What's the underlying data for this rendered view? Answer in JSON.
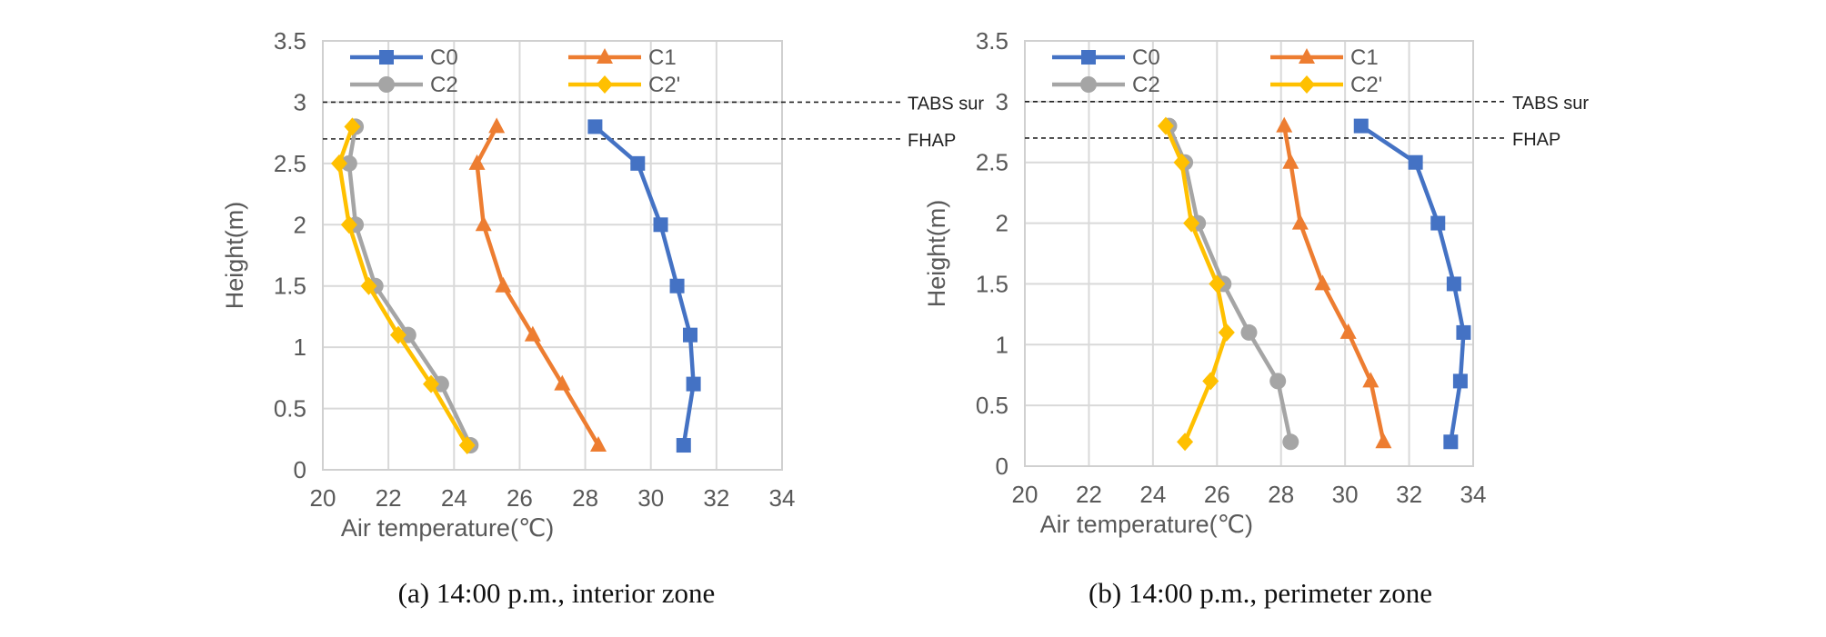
{
  "chart_data": [
    {
      "type": "line",
      "caption": "(a) 14:00 p.m., interior zone",
      "xlabel": "Air temperature(℃)",
      "ylabel": "Height(m)",
      "xlim": [
        20,
        34
      ],
      "ylim": [
        0,
        3.5
      ],
      "xticks": [
        "20",
        "22",
        "24",
        "26",
        "28",
        "30",
        "32",
        "34"
      ],
      "yticks": [
        "0",
        "0.5",
        "1",
        "1.5",
        "2",
        "2.5",
        "3",
        "3.5"
      ],
      "grid": true,
      "legend": "top-inside",
      "reference_lines": [
        {
          "label": "TABS sur",
          "y": 3.0
        },
        {
          "label": "FHAP",
          "y": 2.7
        }
      ],
      "series": [
        {
          "name": "C0",
          "color": "#4472C4",
          "marker": "square",
          "points": [
            [
              28.3,
              2.8
            ],
            [
              29.6,
              2.5
            ],
            [
              30.3,
              2.0
            ],
            [
              30.8,
              1.5
            ],
            [
              31.2,
              1.1
            ],
            [
              31.3,
              0.7
            ],
            [
              31.0,
              0.2
            ]
          ]
        },
        {
          "name": "C1",
          "color": "#ED7D31",
          "marker": "triangle",
          "points": [
            [
              25.3,
              2.8
            ],
            [
              24.7,
              2.5
            ],
            [
              24.9,
              2.0
            ],
            [
              25.5,
              1.5
            ],
            [
              26.4,
              1.1
            ],
            [
              27.3,
              0.7
            ],
            [
              28.4,
              0.2
            ]
          ]
        },
        {
          "name": "C2",
          "color": "#A5A5A5",
          "marker": "circle",
          "points": [
            [
              21.0,
              2.8
            ],
            [
              20.8,
              2.5
            ],
            [
              21.0,
              2.0
            ],
            [
              21.6,
              1.5
            ],
            [
              22.6,
              1.1
            ],
            [
              23.6,
              0.7
            ],
            [
              24.5,
              0.2
            ]
          ]
        },
        {
          "name": "C2'",
          "color": "#FFC000",
          "marker": "diamond",
          "points": [
            [
              20.9,
              2.8
            ],
            [
              20.5,
              2.5
            ],
            [
              20.8,
              2.0
            ],
            [
              21.4,
              1.5
            ],
            [
              22.3,
              1.1
            ],
            [
              23.3,
              0.7
            ],
            [
              24.4,
              0.2
            ]
          ]
        }
      ]
    },
    {
      "type": "line",
      "caption": "(b) 14:00 p.m., perimeter zone",
      "xlabel": "Air temperature(℃)",
      "ylabel": "Height(m)",
      "xlim": [
        20,
        34
      ],
      "ylim": [
        0,
        3.5
      ],
      "xticks": [
        "20",
        "22",
        "24",
        "26",
        "28",
        "30",
        "32",
        "34"
      ],
      "yticks": [
        "0",
        "0.5",
        "1",
        "1.5",
        "2",
        "2.5",
        "3",
        "3.5"
      ],
      "grid": true,
      "legend": "top-inside",
      "reference_lines": [
        {
          "label": "TABS sur",
          "y": 3.0
        },
        {
          "label": "FHAP",
          "y": 2.7
        }
      ],
      "series": [
        {
          "name": "C0",
          "color": "#4472C4",
          "marker": "square",
          "points": [
            [
              30.5,
              2.8
            ],
            [
              32.2,
              2.5
            ],
            [
              32.9,
              2.0
            ],
            [
              33.4,
              1.5
            ],
            [
              33.7,
              1.1
            ],
            [
              33.6,
              0.7
            ],
            [
              33.3,
              0.2
            ]
          ]
        },
        {
          "name": "C1",
          "color": "#ED7D31",
          "marker": "triangle",
          "points": [
            [
              28.1,
              2.8
            ],
            [
              28.3,
              2.5
            ],
            [
              28.6,
              2.0
            ],
            [
              29.3,
              1.5
            ],
            [
              30.1,
              1.1
            ],
            [
              30.8,
              0.7
            ],
            [
              31.2,
              0.2
            ]
          ]
        },
        {
          "name": "C2",
          "color": "#A5A5A5",
          "marker": "circle",
          "points": [
            [
              24.5,
              2.8
            ],
            [
              25.0,
              2.5
            ],
            [
              25.4,
              2.0
            ],
            [
              26.2,
              1.5
            ],
            [
              27.0,
              1.1
            ],
            [
              27.9,
              0.7
            ],
            [
              28.3,
              0.2
            ]
          ]
        },
        {
          "name": "C2'",
          "color": "#FFC000",
          "marker": "diamond",
          "points": [
            [
              24.4,
              2.8
            ],
            [
              24.9,
              2.5
            ],
            [
              25.2,
              2.0
            ],
            [
              26.0,
              1.5
            ],
            [
              26.3,
              1.1
            ],
            [
              25.8,
              0.7
            ],
            [
              25.0,
              0.2
            ]
          ]
        }
      ]
    }
  ]
}
